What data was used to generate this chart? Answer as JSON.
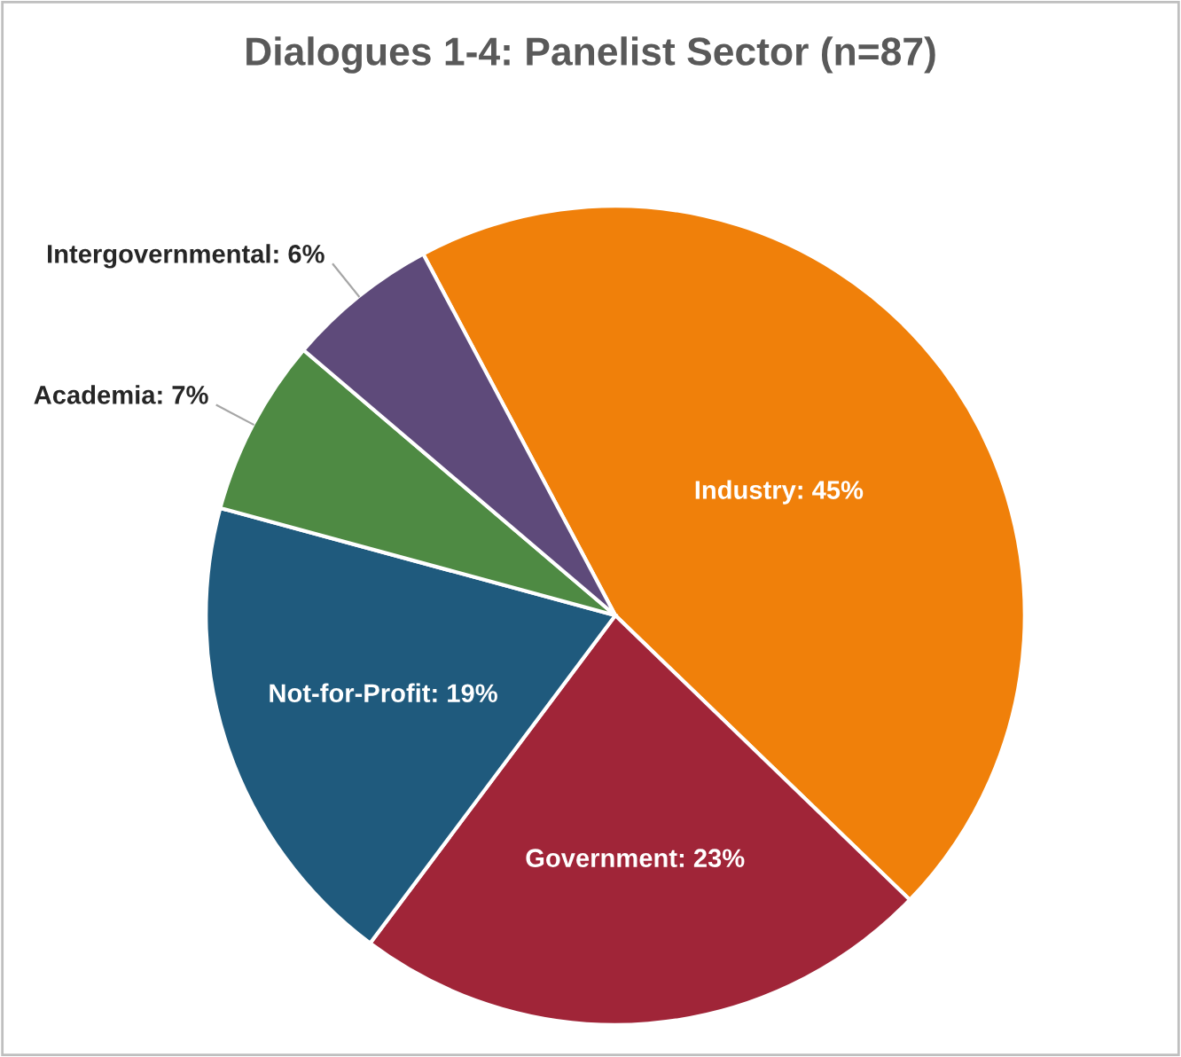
{
  "chart_data": {
    "type": "pie",
    "title": "Dialogues 1-4: Panelist Sector (n=87)",
    "categories": [
      "Industry",
      "Government",
      "Not-for-Profit",
      "Academia",
      "Intergovernmental"
    ],
    "value_labels": [
      "45%",
      "23%",
      "19%",
      "7%",
      "6%"
    ],
    "values": [
      45,
      23,
      19,
      7,
      6
    ],
    "colors": [
      "#f0800a",
      "#a02538",
      "#1f5a7d",
      "#4e8a43",
      "#5e4a7a"
    ],
    "legend": false
  }
}
